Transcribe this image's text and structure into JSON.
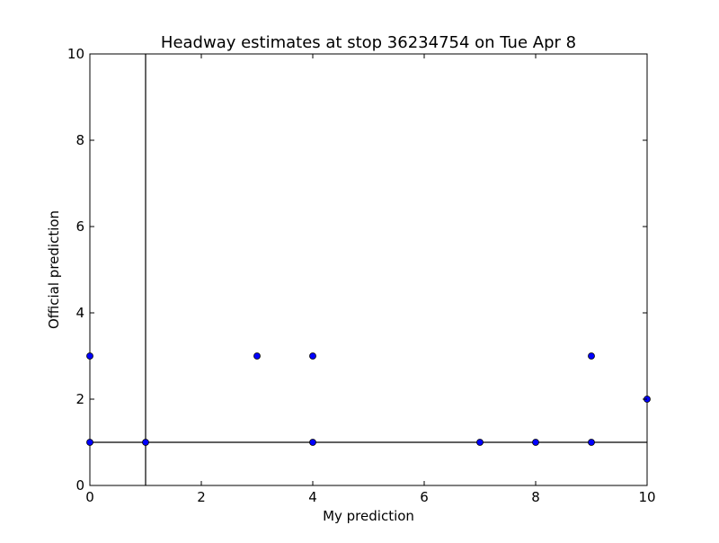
{
  "chart_data": {
    "type": "scatter",
    "title": "Headway estimates at stop 36234754 on Tue Apr 8",
    "xlabel": "My prediction",
    "ylabel": "Official prediction",
    "xlim": [
      0,
      10
    ],
    "ylim": [
      0,
      10
    ],
    "xticks": [
      "0",
      "2",
      "4",
      "6",
      "8",
      "10"
    ],
    "yticks": [
      "0",
      "2",
      "4",
      "6",
      "8",
      "10"
    ],
    "grid": false,
    "reference_lines": {
      "vertical_x": 1,
      "horizontal_y": 1
    },
    "series": [
      {
        "color": "#0000ff",
        "x": [
          0,
          0,
          1,
          3,
          4,
          4,
          7,
          8,
          9,
          9,
          10
        ],
        "y": [
          3,
          1,
          1,
          3,
          3,
          1,
          1,
          1,
          3,
          1,
          2
        ]
      }
    ]
  }
}
